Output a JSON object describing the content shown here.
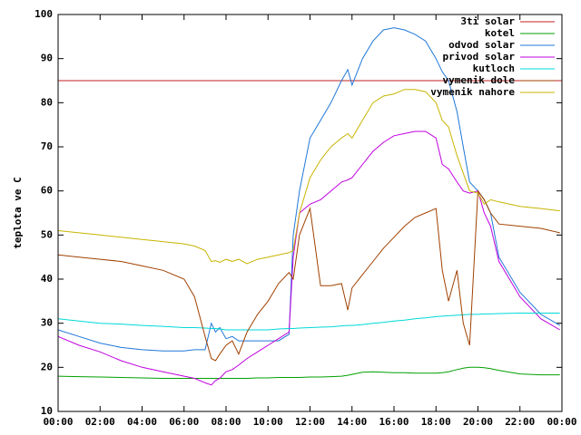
{
  "chart_data": {
    "type": "line",
    "ylabel": "teplota ve C",
    "x": [
      0,
      1,
      2,
      3,
      4,
      5,
      6,
      6.5,
      7,
      7.3,
      7.5,
      7.7,
      8,
      8.3,
      8.6,
      9,
      9.5,
      10,
      10.5,
      11,
      11.2,
      11.5,
      12,
      12.5,
      13,
      13.5,
      13.8,
      14,
      14.5,
      15,
      15.5,
      16,
      16.5,
      17,
      17.5,
      18,
      18.3,
      18.6,
      19,
      19.3,
      19.6,
      20,
      20.3,
      20.6,
      21,
      22,
      23,
      23.9
    ],
    "xlim": [
      0,
      24
    ],
    "xticks": [
      {
        "value": 0,
        "label": "00:00"
      },
      {
        "value": 2,
        "label": "02:00"
      },
      {
        "value": 4,
        "label": "04:00"
      },
      {
        "value": 6,
        "label": "06:00"
      },
      {
        "value": 8,
        "label": "08:00"
      },
      {
        "value": 10,
        "label": "10:00"
      },
      {
        "value": 12,
        "label": "12:00"
      },
      {
        "value": 14,
        "label": "14:00"
      },
      {
        "value": 16,
        "label": "16:00"
      },
      {
        "value": 18,
        "label": "18:00"
      },
      {
        "value": 20,
        "label": "20:00"
      },
      {
        "value": 22,
        "label": "22:00"
      },
      {
        "value": 24,
        "label": "00:00"
      }
    ],
    "ylim": [
      10,
      100
    ],
    "yticks": [
      10,
      20,
      30,
      40,
      50,
      60,
      70,
      80,
      90,
      100
    ],
    "legend": "top-right",
    "series": [
      {
        "name": "3ti solar",
        "color": "#c02020",
        "x": [
          0,
          24
        ],
        "values": [
          85,
          85
        ]
      },
      {
        "name": "kotel",
        "color": "#00a000",
        "values": [
          18,
          17.9,
          17.8,
          17.7,
          17.6,
          17.5,
          17.5,
          17.5,
          17.5,
          17.5,
          17.5,
          17.5,
          17.5,
          17.5,
          17.5,
          17.5,
          17.6,
          17.6,
          17.7,
          17.7,
          17.7,
          17.7,
          17.8,
          17.8,
          17.9,
          18,
          18.2,
          18.4,
          18.9,
          19,
          18.9,
          18.8,
          18.8,
          18.7,
          18.7,
          18.7,
          18.8,
          19,
          19.5,
          19.8,
          20,
          20,
          19.9,
          19.7,
          19.3,
          18.5,
          18.3,
          18.3
        ]
      },
      {
        "name": "odvod solar",
        "color": "#1f78d8",
        "values": [
          28.5,
          27,
          25.5,
          24.5,
          24,
          23.7,
          23.7,
          24,
          24,
          30,
          28,
          29,
          26.5,
          27,
          26,
          26,
          26,
          26,
          26,
          27.5,
          50,
          60,
          72,
          76,
          80,
          85,
          87.5,
          84,
          90,
          94,
          96.5,
          97,
          96.5,
          95.5,
          94,
          90,
          87,
          85,
          78,
          70,
          62,
          60,
          58,
          55,
          45,
          37,
          32,
          29.5
        ]
      },
      {
        "name": "privod solar",
        "color": "#c000e0",
        "values": [
          27,
          25,
          23.5,
          21.5,
          20,
          19,
          18,
          17.5,
          16.5,
          16,
          17,
          17.5,
          19,
          19.5,
          20.5,
          22,
          23.5,
          25,
          26.5,
          28,
          45,
          55,
          57,
          58,
          60,
          62,
          62.5,
          63,
          66,
          69,
          71,
          72.5,
          73,
          73.5,
          73.5,
          72,
          66,
          65,
          62,
          60,
          59.5,
          60,
          55,
          52,
          44,
          36,
          31,
          28.5
        ]
      },
      {
        "name": "kutloch",
        "color": "#00d8d8",
        "values": [
          31,
          30.5,
          30,
          29.8,
          29.5,
          29.3,
          29,
          29,
          28.9,
          28.8,
          28.8,
          28.7,
          28.5,
          28.5,
          28.5,
          28.5,
          28.5,
          28.5,
          28.7,
          28.8,
          28.8,
          28.9,
          29,
          29.1,
          29.2,
          29.4,
          29.5,
          29.5,
          29.7,
          30,
          30.2,
          30.5,
          30.7,
          31,
          31.2,
          31.5,
          31.6,
          31.7,
          31.8,
          31.9,
          32,
          32,
          32.1,
          32.1,
          32.2,
          32.3,
          32.3,
          32.3
        ]
      },
      {
        "name": "vymenik dole",
        "color": "#a04000",
        "values": [
          45.5,
          45,
          44.5,
          44,
          43,
          42,
          40,
          36,
          27,
          22,
          21.5,
          23,
          25,
          26,
          23,
          28,
          32,
          35,
          39,
          41.5,
          40,
          50,
          56,
          38.5,
          38.5,
          39,
          33,
          38,
          41,
          44,
          47,
          49.5,
          52,
          54,
          55,
          56,
          42,
          35,
          42,
          30,
          25,
          60,
          58,
          55,
          52.5,
          52,
          51.5,
          50.5
        ]
      },
      {
        "name": "vymenik nahore",
        "color": "#c8b400",
        "values": [
          51,
          50.5,
          50,
          49.5,
          49,
          48.5,
          48,
          47.5,
          46.5,
          44,
          44.2,
          43.8,
          44.5,
          44,
          44.5,
          43.5,
          44.5,
          45,
          45.5,
          46,
          46.5,
          55,
          63,
          67,
          70,
          72,
          73,
          72,
          76,
          80,
          81.5,
          82,
          83,
          83,
          82.5,
          80,
          76,
          74.5,
          68,
          64,
          60,
          59.5,
          57,
          58,
          57.5,
          56.5,
          56,
          55.5
        ]
      }
    ]
  }
}
